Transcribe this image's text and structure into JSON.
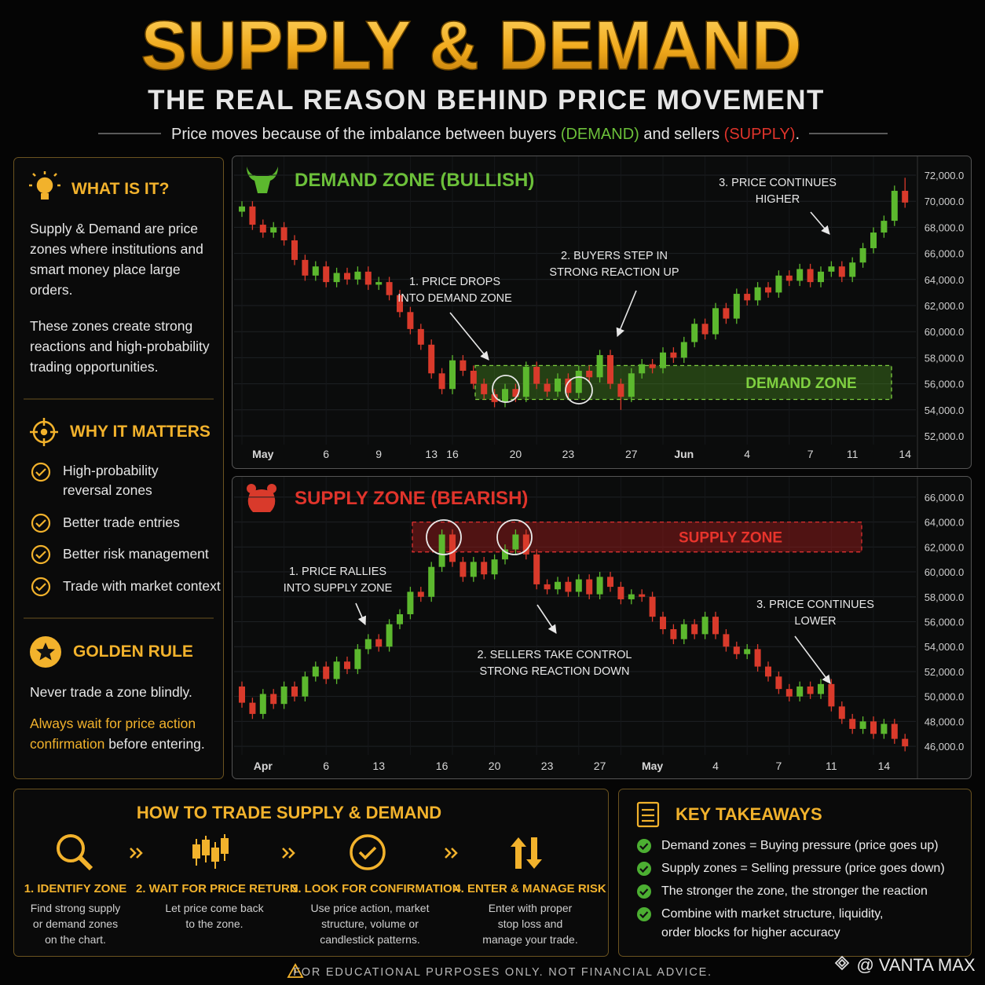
{
  "header": {
    "title": "SUPPLY & DEMAND",
    "subtitle": "THE REAL REASON BEHIND PRICE MOVEMENT",
    "tagline": [
      "Price moves because of the imbalance between buyers ",
      "(DEMAND)",
      " and sellers ",
      "(SUPPLY)",
      "."
    ]
  },
  "what_is_it": {
    "title": "WHAT IS IT?",
    "paragraphs": [
      "Supply & Demand are price zones where institutions and smart money place large orders.",
      "These zones create strong reactions and high-probability trading opportunities."
    ]
  },
  "why_it_matters": {
    "title": "WHY IT MATTERS",
    "items": [
      "High-probability reversal zones",
      "Better trade entries",
      "Better risk management",
      "Trade with market context"
    ]
  },
  "golden_rule": {
    "title": "GOLDEN RULE",
    "text": "Never trade a zone blindly.",
    "highlight": "Always wait for price action confirmation",
    "rest": " before entering."
  },
  "chart_data": [
    {
      "type": "candlestick",
      "title": "DEMAND ZONE (BULLISH)",
      "title_color": "#6cc03a",
      "up_color": "#5cb82e",
      "down_color": "#d93a2b",
      "grid": true,
      "categories": [
        null,
        null,
        "May",
        null,
        null,
        null,
        null,
        null,
        "6",
        null,
        null,
        null,
        null,
        "9",
        null,
        null,
        null,
        null,
        "13",
        null,
        "16",
        null,
        null,
        null,
        null,
        null,
        "20",
        null,
        null,
        null,
        null,
        "23",
        null,
        null,
        null,
        null,
        null,
        "27",
        null,
        null,
        null,
        null,
        "Jun",
        null,
        null,
        null,
        null,
        null,
        "4",
        null,
        null,
        null,
        null,
        null,
        "7",
        null,
        null,
        null,
        "11",
        null,
        null,
        null,
        null,
        "14"
      ],
      "open": [
        69200,
        69600,
        68200,
        67600,
        68000,
        67000,
        65500,
        64300,
        65000,
        63800,
        64500,
        64000,
        64600,
        63600,
        63800,
        62800,
        61500,
        60200,
        59000,
        56800,
        55600,
        57800,
        57000,
        56000,
        55200,
        54600,
        55600,
        55000,
        57300,
        56000,
        55400,
        56400,
        55300,
        57000,
        56500,
        58200,
        56000,
        55000,
        56800,
        57500,
        57200,
        58400,
        58000,
        59200,
        60600,
        59800,
        61800,
        61000,
        62900,
        62400,
        63400,
        63000,
        64300,
        63900,
        64800,
        63800,
        64600,
        65000,
        64200,
        65300,
        66400,
        67600,
        68500,
        70800
      ],
      "high": [
        70000,
        70000,
        68600,
        68400,
        68400,
        67400,
        65900,
        65400,
        65400,
        64900,
        64900,
        65000,
        65000,
        64200,
        64200,
        63200,
        61900,
        60600,
        59400,
        57200,
        58200,
        58200,
        57400,
        56400,
        55600,
        56000,
        56000,
        57700,
        57700,
        56400,
        56800,
        56800,
        57400,
        57400,
        58600,
        58600,
        56400,
        57200,
        57900,
        57900,
        58800,
        58800,
        59600,
        61000,
        61000,
        62200,
        62200,
        63300,
        63300,
        63800,
        63800,
        64700,
        64700,
        65200,
        65200,
        65000,
        65400,
        65400,
        65700,
        66800,
        68000,
        68900,
        71200,
        71800
      ],
      "low": [
        68800,
        67800,
        67200,
        67200,
        66600,
        65100,
        63900,
        63900,
        63400,
        63400,
        63600,
        63600,
        63200,
        63200,
        62400,
        61100,
        59800,
        58600,
        56400,
        55200,
        55200,
        56600,
        55600,
        54800,
        54200,
        54200,
        54600,
        54600,
        55600,
        55000,
        55000,
        54900,
        54900,
        56100,
        56100,
        55600,
        54000,
        54600,
        56400,
        56800,
        56800,
        57600,
        57600,
        58800,
        59400,
        59400,
        60600,
        60600,
        62000,
        62000,
        62600,
        62600,
        63500,
        63500,
        63400,
        63400,
        64200,
        63800,
        63800,
        64900,
        66000,
        67200,
        68100,
        69500
      ],
      "close": [
        69600,
        68200,
        67600,
        68000,
        67000,
        65500,
        64300,
        65000,
        63800,
        64500,
        64000,
        64600,
        63600,
        63800,
        62800,
        61500,
        60200,
        59000,
        56800,
        55600,
        57800,
        57000,
        56000,
        55200,
        54600,
        55600,
        55000,
        57300,
        56000,
        55400,
        56400,
        55300,
        57000,
        56500,
        58200,
        56000,
        55000,
        56800,
        57500,
        57200,
        58400,
        58000,
        59200,
        60600,
        59800,
        61800,
        61000,
        62900,
        62400,
        63400,
        63000,
        64300,
        63900,
        64800,
        63800,
        64600,
        65000,
        64200,
        65300,
        66400,
        67600,
        68500,
        70800,
        69900
      ],
      "ylim": [
        51000,
        73000
      ],
      "yticks": [
        {
          "value": 52000,
          "label": "52,000.0"
        },
        {
          "value": 54000,
          "label": "54,000.0"
        },
        {
          "value": 56000,
          "label": "56,000.0"
        },
        {
          "value": 58000,
          "label": "58,000.0"
        },
        {
          "value": 60000,
          "label": "60,000.0"
        },
        {
          "value": 62000,
          "label": "62,000.0"
        },
        {
          "value": 64000,
          "label": "64,000.0"
        },
        {
          "value": 66000,
          "label": "66,000.0"
        },
        {
          "value": 68000,
          "label": "68,000.0"
        },
        {
          "value": 70000,
          "label": "70,000.0"
        },
        {
          "value": 72000,
          "label": "72,000.0"
        }
      ],
      "zone": {
        "label": "DEMAND ZONE",
        "low": 54800,
        "high": 57400,
        "fill": "rgba(80,150,35,0.38)",
        "stroke": "#7fd040",
        "text_color": "#7fd040"
      },
      "annotations": [
        [
          "1. PRICE DROPS",
          "INTO DEMAND ZONE"
        ],
        [
          "2. BUYERS STEP IN",
          "STRONG REACTION UP"
        ],
        [
          "3. PRICE CONTINUES",
          "HIGHER"
        ]
      ]
    },
    {
      "type": "candlestick",
      "title": "SUPPLY ZONE (BEARISH)",
      "title_color": "#e0342b",
      "up_color": "#5cb82e",
      "down_color": "#d93a2b",
      "grid": true,
      "categories": [
        null,
        null,
        "Apr",
        null,
        null,
        null,
        null,
        null,
        "6",
        null,
        null,
        null,
        null,
        "13",
        null,
        null,
        null,
        null,
        null,
        "16",
        null,
        null,
        null,
        null,
        "20",
        null,
        null,
        null,
        null,
        "23",
        null,
        null,
        null,
        null,
        "27",
        null,
        null,
        null,
        null,
        "May",
        null,
        null,
        null,
        null,
        null,
        "4",
        null,
        null,
        null,
        null,
        null,
        "7",
        null,
        null,
        null,
        null,
        "11",
        null,
        null,
        null,
        null,
        "14",
        null,
        null
      ],
      "open": [
        50800,
        49500,
        48600,
        50200,
        49400,
        50800,
        50000,
        51600,
        52400,
        51400,
        52800,
        52200,
        53800,
        54600,
        54000,
        55800,
        56600,
        58400,
        58000,
        60400,
        63000,
        60800,
        59600,
        60800,
        59800,
        61000,
        61800,
        63000,
        61400,
        59000,
        58600,
        59200,
        58400,
        59400,
        58200,
        59600,
        58800,
        57800,
        58200,
        58000,
        56400,
        55400,
        54600,
        55800,
        55000,
        56400,
        55000,
        54000,
        53400,
        53800,
        52400,
        51600,
        50600,
        50000,
        50800,
        50200,
        51000,
        49200,
        48200,
        47400,
        48000,
        47000,
        47800,
        46600
      ],
      "high": [
        51200,
        49900,
        50600,
        50600,
        51200,
        51200,
        52000,
        52800,
        52800,
        53200,
        53200,
        54200,
        55000,
        55000,
        56200,
        57000,
        58800,
        58800,
        60800,
        63400,
        63400,
        61200,
        61200,
        61200,
        61400,
        62200,
        63400,
        63400,
        61800,
        59400,
        59600,
        59600,
        59800,
        59800,
        60000,
        60000,
        59200,
        58600,
        58600,
        58400,
        56800,
        55800,
        56200,
        56200,
        56800,
        56800,
        55400,
        54400,
        54200,
        54200,
        52800,
        52000,
        51000,
        51200,
        51200,
        51400,
        51400,
        49600,
        48600,
        48400,
        48400,
        48200,
        48200,
        47000
      ],
      "low": [
        49100,
        48200,
        48200,
        49000,
        49000,
        49600,
        49600,
        51200,
        51000,
        51000,
        51800,
        51800,
        53400,
        53600,
        53600,
        55400,
        56200,
        57600,
        57600,
        60000,
        60400,
        59200,
        59200,
        59400,
        59400,
        60600,
        61400,
        61000,
        58600,
        58200,
        58200,
        58000,
        58000,
        57800,
        57800,
        58400,
        57400,
        57400,
        57600,
        56000,
        55000,
        54200,
        54200,
        54600,
        54600,
        54600,
        53600,
        53000,
        53000,
        52000,
        51200,
        50200,
        49600,
        49600,
        49800,
        49800,
        48800,
        47800,
        47000,
        47000,
        46600,
        46600,
        46200,
        45600
      ],
      "close": [
        49500,
        48600,
        50200,
        49400,
        50800,
        50000,
        51600,
        52400,
        51400,
        52800,
        52200,
        53800,
        54600,
        54000,
        55800,
        56600,
        58400,
        58000,
        60400,
        63000,
        60800,
        59600,
        60800,
        59800,
        61000,
        61800,
        63000,
        61400,
        59000,
        58600,
        59200,
        58400,
        59400,
        58200,
        59600,
        58800,
        57800,
        58200,
        58000,
        56400,
        55400,
        54600,
        55800,
        55000,
        56400,
        55000,
        54000,
        53400,
        53800,
        52400,
        51600,
        50600,
        50000,
        50800,
        50200,
        51000,
        49200,
        48200,
        47400,
        48000,
        47000,
        47800,
        46600,
        46000
      ],
      "ylim": [
        45000,
        67000
      ],
      "yticks": [
        {
          "value": 46000,
          "label": "46,000.0"
        },
        {
          "value": 48000,
          "label": "48,000.0"
        },
        {
          "value": 50000,
          "label": "50,000.0"
        },
        {
          "value": 52000,
          "label": "52,000.0"
        },
        {
          "value": 54000,
          "label": "54,000.0"
        },
        {
          "value": 56000,
          "label": "56,000.0"
        },
        {
          "value": 58000,
          "label": "58,000.0"
        },
        {
          "value": 60000,
          "label": "60,000.0"
        },
        {
          "value": 62000,
          "label": "62,000.0"
        },
        {
          "value": 64000,
          "label": "64,000.0"
        },
        {
          "value": 66000,
          "label": "66,000.0"
        }
      ],
      "zone": {
        "label": "SUPPLY ZONE",
        "low": 61600,
        "high": 64000,
        "fill": "rgba(150,25,25,0.5)",
        "stroke": "#e03030",
        "text_color": "#e8342c"
      },
      "annotations": [
        [
          "1. PRICE RALLIES",
          "INTO SUPPLY ZONE"
        ],
        [
          "2. SELLERS TAKE CONTROL",
          "STRONG REACTION DOWN"
        ],
        [
          "3. PRICE CONTINUES",
          "LOWER"
        ]
      ]
    }
  ],
  "how_to_trade": {
    "title": "HOW TO TRADE SUPPLY & DEMAND",
    "steps": [
      {
        "title": "1. IDENTIFY ZONE",
        "lines": [
          "Find strong supply",
          "or demand zones",
          "on the chart."
        ]
      },
      {
        "title": "2. WAIT FOR PRICE RETURN",
        "lines": [
          "Let price come back",
          "to the zone."
        ]
      },
      {
        "title": "3. LOOK FOR CONFIRMATION",
        "lines": [
          "Use price action, market",
          "structure, volume or",
          "candlestick patterns."
        ]
      },
      {
        "title": "4. ENTER & MANAGE RISK",
        "lines": [
          "Enter with proper",
          "stop loss and",
          "manage your trade."
        ]
      }
    ]
  },
  "key_takeaways": {
    "title": "KEY TAKEAWAYS",
    "items": [
      [
        "Demand zones = Buying pressure (price goes up)"
      ],
      [
        "Supply zones = Selling pressure (price goes down)"
      ],
      [
        "The stronger the zone, the stronger the reaction"
      ],
      [
        "Combine with market structure, liquidity,",
        "order blocks for higher accuracy"
      ]
    ]
  },
  "footer": {
    "disclaimer": "FOR EDUCATIONAL PURPOSES ONLY. NOT FINANCIAL ADVICE.",
    "watermark": "@ VANTA MAX"
  }
}
